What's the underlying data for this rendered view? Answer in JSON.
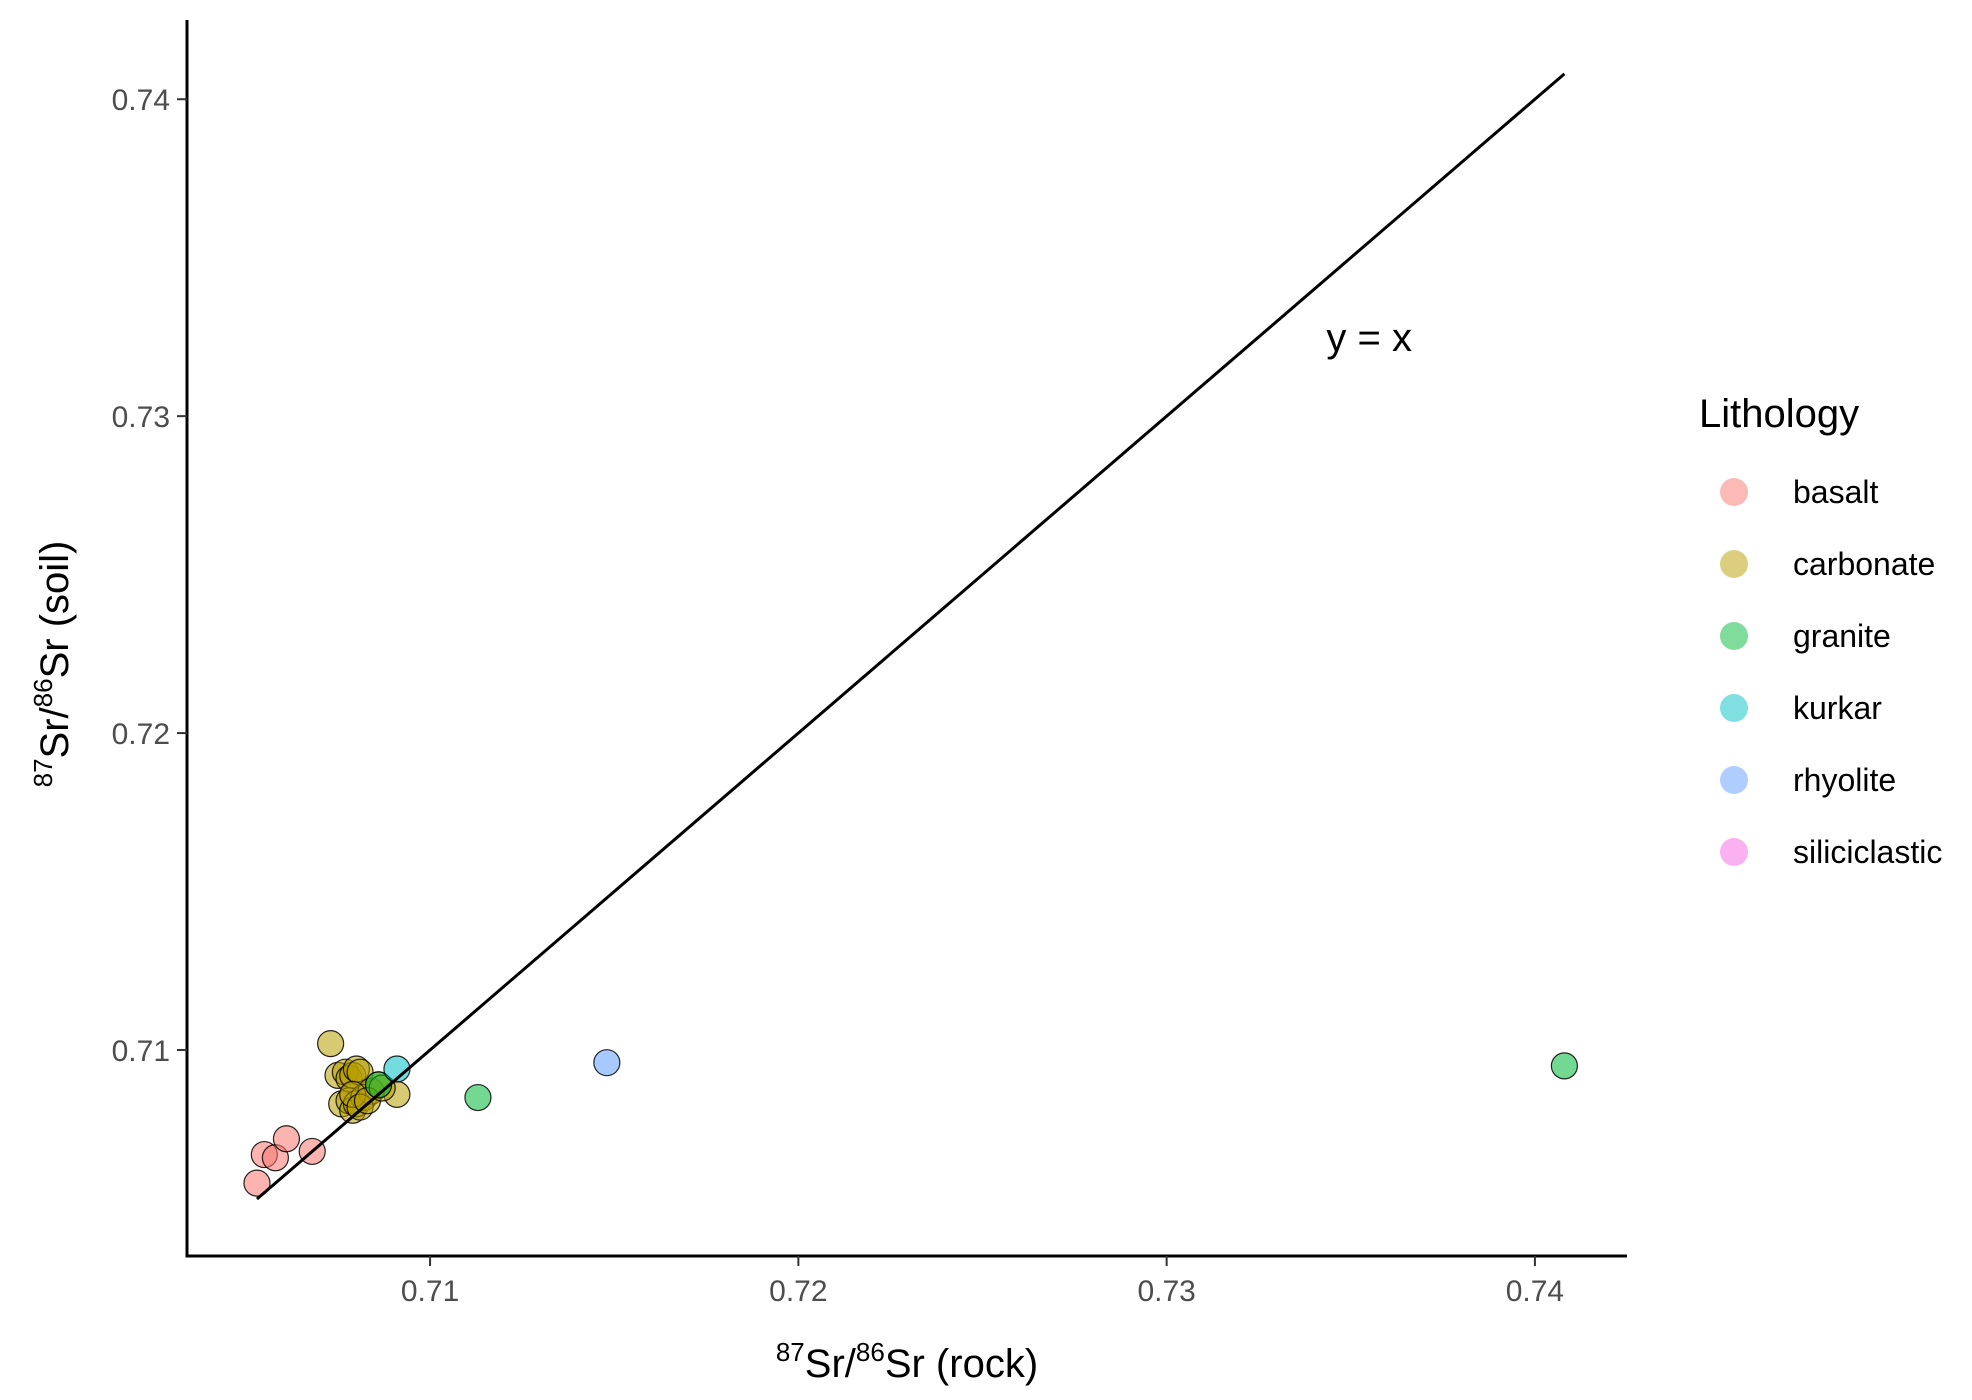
{
  "chart_data": {
    "type": "scatter",
    "xlabel": {
      "sup1": "87",
      "mid": "Sr/",
      "sup2": "86",
      "tail": "Sr (rock)"
    },
    "ylabel": {
      "sup1": "87",
      "mid": "Sr/",
      "sup2": "86",
      "tail": "Sr (soil)"
    },
    "xlim": [
      0.7034,
      0.7425
    ],
    "ylim": [
      0.7035,
      0.7425
    ],
    "x_ticks": [
      "0.71",
      "0.72",
      "0.73",
      "0.74"
    ],
    "x_tick_values": [
      0.71,
      0.72,
      0.73,
      0.74
    ],
    "y_ticks": [
      "0.71",
      "0.72",
      "0.73",
      "0.74"
    ],
    "y_tick_values": [
      0.71,
      0.72,
      0.73,
      0.74
    ],
    "grid": false,
    "legend": {
      "title": "Lithology",
      "placement": "right",
      "entries": [
        {
          "name": "basalt",
          "color": "#F8766D"
        },
        {
          "name": "carbonate",
          "color": "#B79F00"
        },
        {
          "name": "granite",
          "color": "#00BA38"
        },
        {
          "name": "kurkar",
          "color": "#00BFC4"
        },
        {
          "name": "rhyolite",
          "color": "#619CFF"
        },
        {
          "name": "siliciclastic",
          "color": "#F564E3"
        }
      ]
    },
    "reference_line": {
      "label": "y = x",
      "from": 0.7053,
      "to": 0.7408,
      "label_x": 0.7355,
      "label_y": 0.7325
    },
    "series": [
      {
        "name": "basalt",
        "color": "#F8766D",
        "x": [
          0.7053,
          0.7055,
          0.7058,
          0.7061,
          0.7068
        ],
        "y": [
          0.7058,
          0.7067,
          0.7066,
          0.7072,
          0.7068
        ]
      },
      {
        "name": "carbonate",
        "color": "#B79F00",
        "x": [
          0.7073,
          0.7075,
          0.7077,
          0.7078,
          0.7079,
          0.708,
          0.7081,
          0.7076,
          0.7078,
          0.7079,
          0.708,
          0.7082,
          0.7084,
          0.7086,
          0.7079,
          0.7081,
          0.7083,
          0.7091,
          0.7087
        ],
        "y": [
          0.7102,
          0.7092,
          0.7093,
          0.7091,
          0.7092,
          0.7094,
          0.7093,
          0.7083,
          0.7084,
          0.7081,
          0.7083,
          0.7085,
          0.7087,
          0.7089,
          0.7086,
          0.7082,
          0.7084,
          0.7086,
          0.7088
        ]
      },
      {
        "name": "granite",
        "color": "#00BA38",
        "x": [
          0.7086,
          0.7113,
          0.7408
        ],
        "y": [
          0.7089,
          0.7085,
          0.7095
        ]
      },
      {
        "name": "kurkar",
        "color": "#00BFC4",
        "x": [
          0.7091
        ],
        "y": [
          0.7094
        ]
      },
      {
        "name": "rhyolite",
        "color": "#619CFF",
        "x": [
          0.7148
        ],
        "y": [
          0.7096
        ]
      },
      {
        "name": "siliciclastic",
        "color": "#F564E3",
        "x": [],
        "y": []
      }
    ]
  }
}
